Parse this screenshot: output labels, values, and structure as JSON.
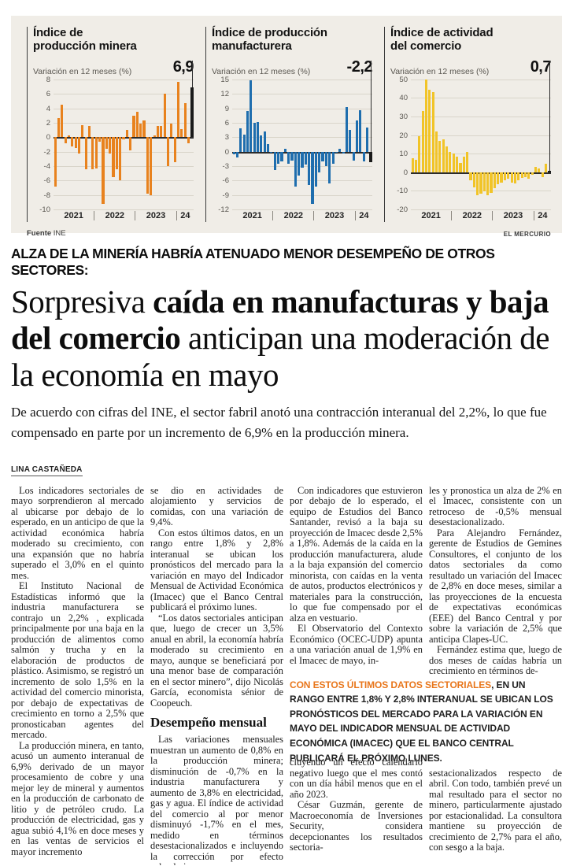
{
  "colors": {
    "mining_bar": "#e8821e",
    "manufacturing_bar": "#1f6eae",
    "commerce_bar": "#f1c428",
    "highlight_bar": "#1a1a1a",
    "accent_orange": "#e8761b",
    "panel_bg": "#f0ede7"
  },
  "panel": {
    "source_label": "Fuente",
    "source_value": "INE",
    "brand": "EL MERCURIO"
  },
  "chart_data": [
    {
      "type": "bar",
      "title": "Índice de\nproducción minera",
      "subtitle": "Variación en 12 meses (%)",
      "value_label": "6,9",
      "color": "#e8821e",
      "ylim": [
        -10,
        8
      ],
      "yticks": [
        8,
        6,
        4,
        2,
        0,
        -2,
        -4,
        -6,
        -8,
        -10
      ],
      "groups": [
        {
          "label": "2021",
          "count": 12
        },
        {
          "label": "2022",
          "count": 12
        },
        {
          "label": "2023",
          "count": 12
        },
        {
          "label": "24",
          "count": 5
        }
      ],
      "values": [
        -6.8,
        2.6,
        4.5,
        -0.9,
        0.2,
        -1.3,
        -1.5,
        -2.3,
        1.7,
        -4.4,
        1.6,
        -4.5,
        -4.3,
        -0.6,
        -9.2,
        -1.6,
        -2.3,
        -5.5,
        -4.5,
        -6.0,
        -0.3,
        1.0,
        -1.8,
        3.0,
        3.5,
        1.9,
        2.3,
        -7.8,
        -8.0,
        0.2,
        1.5,
        1.6,
        6.0,
        -4.0,
        1.9,
        -3.5,
        7.7,
        1.1,
        4.7,
        -0.9,
        6.9
      ]
    },
    {
      "type": "bar",
      "title": "Índice de producción\nmanufacturera",
      "subtitle": "Variación en 12 meses (%)",
      "value_label": "-2,2",
      "color": "#1f6eae",
      "ylim": [
        -12,
        15
      ],
      "yticks": [
        15,
        12,
        9,
        6,
        3,
        0,
        -3,
        -6,
        -9,
        -12
      ],
      "groups": [
        {
          "label": "2021",
          "count": 12
        },
        {
          "label": "2022",
          "count": 12
        },
        {
          "label": "2023",
          "count": 12
        },
        {
          "label": "24",
          "count": 5
        }
      ],
      "values": [
        -0.5,
        -1.2,
        4.8,
        3.5,
        8.5,
        14.8,
        5.9,
        6.1,
        3.3,
        4.2,
        1.5,
        -0.3,
        -3.8,
        -2.5,
        -2.0,
        0.6,
        -2.5,
        -1.9,
        -7.3,
        -5.0,
        -3.4,
        -2.7,
        -7.0,
        -10.9,
        -7.2,
        -4.4,
        -2.0,
        -3.0,
        -6.7,
        -2.5,
        -0.3,
        0.5,
        -0.4,
        9.3,
        4.5,
        -1.8,
        6.4,
        8.6,
        -2.0,
        5.0,
        -2.2
      ]
    },
    {
      "type": "bar",
      "title": "Índice de actividad\ndel comercio",
      "subtitle": "Variación en 12 meses (%)",
      "value_label": "0,7",
      "color": "#f1c428",
      "ylim": [
        -20,
        50
      ],
      "yticks": [
        50,
        40,
        30,
        20,
        10,
        0,
        -10,
        -20
      ],
      "groups": [
        {
          "label": "2021",
          "count": 12
        },
        {
          "label": "2022",
          "count": 12
        },
        {
          "label": "2023",
          "count": 12
        },
        {
          "label": "24",
          "count": 5
        }
      ],
      "values": [
        7.5,
        6.8,
        19.5,
        33.0,
        50.0,
        44.5,
        43.3,
        21.8,
        16.8,
        17.5,
        13.8,
        11.0,
        10.2,
        8.3,
        4.8,
        8.5,
        10.8,
        -4.5,
        -8.2,
        -12.5,
        -11.5,
        -10.5,
        -12.5,
        -11.0,
        -8.5,
        -6.5,
        -5.8,
        -4.2,
        -3.5,
        -5.5,
        -6.2,
        -4.5,
        -3.2,
        -2.5,
        -3.5,
        -1.5,
        3.0,
        2.0,
        -2.5,
        4.5,
        0.7
      ]
    }
  ],
  "article": {
    "kicker": "ALZA DE LA MINERÍA HABRÍA ATENUADO MENOR DESEMPEÑO DE OTROS SECTORES:",
    "headline": {
      "seg1": "Sorpresiva ",
      "seg2": "caída en manufacturas y baja del comercio",
      "seg3": " anticipan una moderación de la economía en mayo"
    },
    "deck": "De acuerdo con cifras del INE, el sector fabril anotó una contracción interanual del 2,2%, lo que fue compensado en parte por un incremento de 6,9% en la producción minera.",
    "byline": "LINA CASTAÑEDA",
    "pull_quote": {
      "lead": "CON ESTOS ÚLTIMOS DATOS SECTORIALES",
      "rest": ", EN UN RANGO ENTRE 1,8% Y 2,8% INTERANUAL SE UBICAN LOS PRONÓSTICOS DEL MERCADO PARA LA VARIACIÓN EN MAYO DEL INDICADOR MENSUAL DE ACTIVIDAD ECONÓMICA (IMACEC) QUE EL BANCO CENTRAL PUBLICARÁ EL PRÓXIMO LUNES."
    },
    "columns": [
      {
        "blocks": [
          {
            "type": "p",
            "indent": true,
            "text": "Los indicadores sectoriales de mayo sorprendieron al mercado al ubicarse por debajo de lo esperado, en un anticipo de que la actividad económica habría moderado su crecimiento, con una expansión que no habría superado el 3,0% en el quinto mes."
          },
          {
            "type": "p",
            "indent": true,
            "text": "El Instituto Nacional de Estadísticas informó que la industria manufacturera se contrajo un 2,2% , explicada principalmente por una baja en la producción de alimentos como salmón y trucha y en la elaboración de productos de plástico. Asimismo, se registró un incremento de solo 1,5% en la actividad del comercio minorista, por debajo de expectativas de crecimiento en torno a 2,5% que pronosticaban agentes del mercado."
          },
          {
            "type": "p",
            "indent": true,
            "text": "La producción minera, en tanto, acusó un aumento interanual de 6,9% derivado de un mayor procesamiento de cobre y una mejor ley de mineral y aumentos en la producción de carbonato de litio y de petróleo crudo. La producción de electricidad, gas y agua subió 4,1% en doce meses y en las ventas de servicios el mayor incremento"
          }
        ]
      },
      {
        "blocks": [
          {
            "type": "p",
            "indent": false,
            "text": "se dio en actividades de alojamiento y servicios de comidas, con una variación de 9,4%."
          },
          {
            "type": "p",
            "indent": true,
            "text": "Con estos últimos datos, en un rango entre 1,8% y 2,8% interanual se ubican los pronósticos del mercado para la variación en mayo del Indicador Mensual de Actividad Económica (Imacec) que el Banco Central publicará el próximo lunes."
          },
          {
            "type": "p",
            "indent": true,
            "text": "“Los datos sectoriales anticipan que, luego de crecer un 3,5% anual en abril, la economía habría moderado su crecimiento en mayo, aunque se beneficiará por una menor base de comparación en el sector minero”, dijo Nicolás García, economista sénior de Coopeuch."
          },
          {
            "type": "subhead",
            "text": "Desempeño mensual"
          },
          {
            "type": "p",
            "indent": true,
            "text": "Las variaciones mensuales muestran un aumento de 0,8% en la producción minera; disminución de -0,7% en la industria manufacturera y aumento de 3,8% en electricidad, gas y agua. El índice de actividad del comercio al por menor disminuyó -1,7% en el mes, medido en términos desestacionalizados e incluyendo la corrección por efecto calendario."
          }
        ]
      },
      {
        "blocks": [
          {
            "type": "p",
            "indent": true,
            "text": "Con indicadores que estuvieron por debajo de lo esperado, el equipo de Estudios del Banco Santander, revisó a la baja su proyección de Imacec desde 2,5% a 1,8%. Además de la caída en la producción manufacturera, alude a la baja expansión del comercio minorista, con caídas en la venta de autos, productos electrónicos y materiales para la construcción, lo que fue compensado por el alza en vestuario."
          },
          {
            "type": "p",
            "indent": true,
            "text": "El Observatorio del Contexto Económico (OCEC-UDP) apunta a una variación anual de 1,9% en el Imacec de mayo, in-"
          },
          {
            "type": "spacer"
          },
          {
            "type": "p",
            "indent": false,
            "text": "cluyendo un efecto calendario negativo luego que el mes contó con un día hábil menos que en el año 2023."
          },
          {
            "type": "p",
            "indent": true,
            "text": "César Guzmán, gerente de Macroeconomía de Inversiones Security, considera decepcionantes los resultados sectoria-"
          }
        ]
      },
      {
        "blocks": [
          {
            "type": "p",
            "indent": false,
            "text": "les y pronostica un alza de 2% en el Imacec, consistente con un retroceso de -0,5% mensual desestacionalizado."
          },
          {
            "type": "p",
            "indent": true,
            "text": "Para Alejandro Fernández, gerente de Estudios de Gemines Consultores, el conjunto de los datos sectoriales da como resultado un variación del Imacec de 2,8% en doce meses, similar a las proyecciones de la encuesta de expectativas económicas (EEE) del Banco Central y por sobre la variación de 2,5% que anticipa Clapes-UC."
          },
          {
            "type": "p",
            "indent": true,
            "text": "Fernández estima que, luego de dos meses de caídas habría un crecimiento en términos de-"
          },
          {
            "type": "spacer"
          },
          {
            "type": "p",
            "indent": false,
            "text": "sestacionalizados respecto de abril. Con todo, también prevé un mal resultado para el sector no minero, particularmente ajustado por estacionalidad. La consultora mantiene su proyección de crecimiento de 2,7% para el año, con sesgo a la baja."
          }
        ]
      }
    ]
  }
}
